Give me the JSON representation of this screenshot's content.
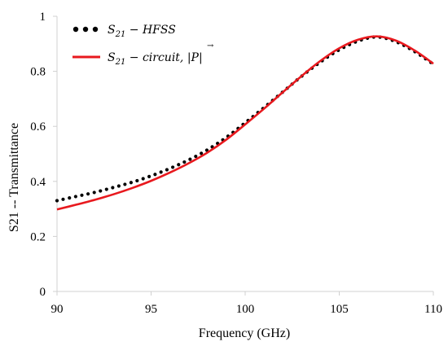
{
  "chart_data": {
    "type": "line",
    "xlabel": "Frequency (GHz)",
    "ylabel": "S21 -- Transmittance",
    "xlim": [
      90,
      110
    ],
    "ylim": [
      0,
      1
    ],
    "xticks": [
      "90",
      "95",
      "100",
      "105",
      "110"
    ],
    "yticks": [
      "0",
      "0.2",
      "0.4",
      "0.6",
      "0.8",
      "1"
    ],
    "grid": false,
    "legend_position": "top-left",
    "series": [
      {
        "name": "S21 − HFSS",
        "style": "dotted",
        "color": "#000000",
        "x": [
          90,
          91,
          92,
          93,
          94,
          95,
          96,
          97,
          98,
          99,
          100,
          101,
          102,
          103,
          104,
          105,
          106,
          107,
          108,
          109,
          110
        ],
        "y": [
          0.33,
          0.345,
          0.36,
          0.378,
          0.397,
          0.42,
          0.447,
          0.478,
          0.515,
          0.56,
          0.613,
          0.668,
          0.725,
          0.782,
          0.834,
          0.878,
          0.91,
          0.925,
          0.908,
          0.872,
          0.826
        ]
      },
      {
        "name": "S21 − circuit, |P|",
        "style": "solid",
        "color": "#e8191e",
        "x": [
          90,
          91,
          92,
          93,
          94,
          95,
          96,
          97,
          98,
          99,
          100,
          101,
          102,
          103,
          104,
          105,
          106,
          107,
          108,
          109,
          110
        ],
        "y": [
          0.298,
          0.315,
          0.333,
          0.353,
          0.376,
          0.402,
          0.432,
          0.466,
          0.505,
          0.552,
          0.607,
          0.664,
          0.724,
          0.783,
          0.838,
          0.884,
          0.915,
          0.927,
          0.912,
          0.876,
          0.828
        ]
      }
    ]
  },
  "legend": {
    "hfss_sub": "21",
    "hfss_rest": " − HFSS",
    "circuit_sub": "21",
    "circuit_rest": " − circuit, |P|"
  }
}
